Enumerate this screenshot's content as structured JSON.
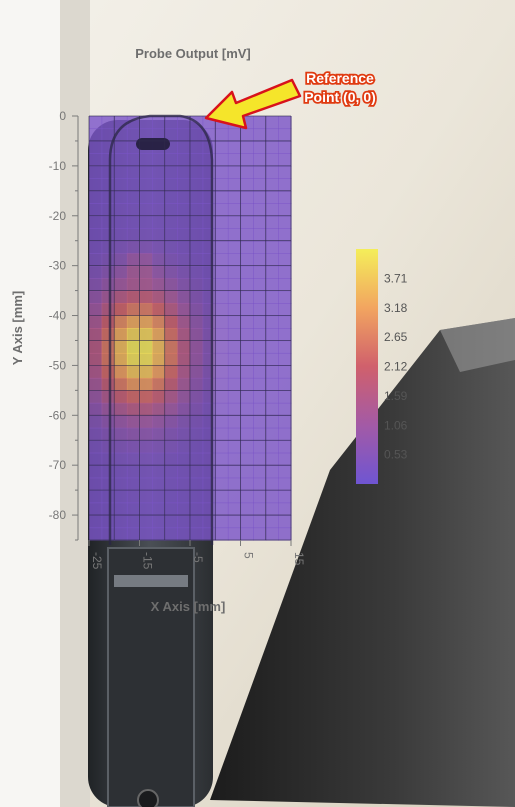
{
  "chart_data": {
    "type": "heatmap",
    "title": "Probe Output [mV]",
    "xlabel": "X Axis [mm]",
    "ylabel": "Y Axis [mm]",
    "xlim": [
      -25,
      15
    ],
    "ylim": [
      -85,
      0
    ],
    "x_ticks": [
      "-25",
      "-15",
      "-5",
      "5",
      "15"
    ],
    "y_ticks": [
      "0",
      "-10",
      "-20",
      "-30",
      "-40",
      "-50",
      "-60",
      "-70",
      "-80"
    ],
    "colorbar_ticks": [
      "3.71",
      "3.18",
      "2.65",
      "2.12",
      "1.59",
      "1.06",
      "0.53"
    ],
    "colorbar_range": [
      0,
      4.24
    ],
    "hotspots": [
      {
        "x": -15,
        "y": -47,
        "value": 4.0,
        "sigma_x": 6,
        "sigma_y": 8
      },
      {
        "x": -15,
        "y": -30,
        "value": 0.6,
        "sigma_x": 2,
        "sigma_y": 2
      }
    ],
    "baseline_value": 0.25
  },
  "annotation": {
    "line1": "Reference",
    "line2": "Point (0, 0)"
  },
  "colors": {
    "low": "#6f55d2",
    "mid": "#d0606c",
    "high": "#f4ee5a",
    "annotation_fill": "#f5e52a",
    "annotation_text": "#e03a10"
  }
}
